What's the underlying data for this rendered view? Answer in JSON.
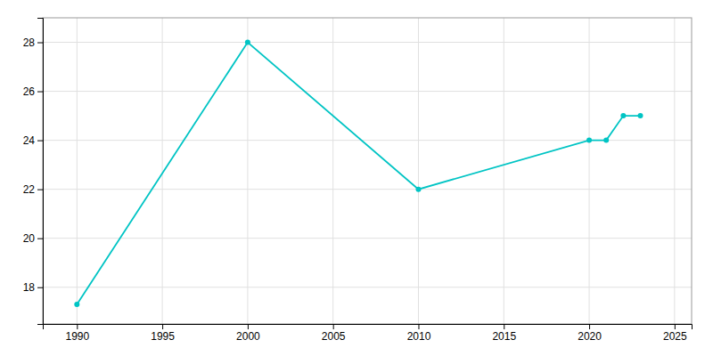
{
  "chart_data": {
    "type": "line",
    "x": [
      1990,
      2000,
      2010,
      2020,
      2021,
      2022,
      2023
    ],
    "values": [
      17.3,
      28.0,
      22.0,
      24.0,
      24.0,
      25.0,
      25.0
    ],
    "color": "#00C4C4",
    "marker": "circle",
    "xlim": [
      1988,
      2026
    ],
    "ylim": [
      16.5,
      29
    ],
    "xticks": [
      1990,
      1995,
      2000,
      2005,
      2010,
      2015,
      2020,
      2025
    ],
    "yticks": [
      18,
      20,
      22,
      24,
      26,
      28
    ],
    "grid": true
  }
}
